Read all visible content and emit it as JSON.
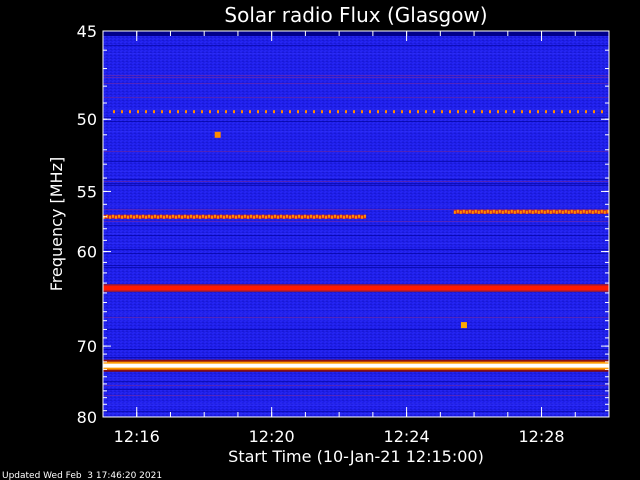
{
  "chart_data": {
    "type": "heatmap",
    "title": "Solar radio Flux (Glasgow)",
    "xlabel": "Start Time (10-Jan-21 12:15:00)",
    "ylabel": "Frequency [MHz]",
    "footer": "Updated Wed Feb  3 17:46:20 2021",
    "x_ticks": [
      "12:16",
      "12:20",
      "12:24",
      "12:28"
    ],
    "x_tick_minutes": [
      1,
      5,
      9,
      13
    ],
    "x_range_minutes": [
      0,
      15
    ],
    "y_ticks": [
      45,
      50,
      55,
      60,
      70,
      80
    ],
    "ylim": [
      45,
      80
    ],
    "y_scale": "reciprocal",
    "colormap": [
      "#00008b",
      "#1a1aff",
      "#6a2aa0",
      "#c82828",
      "#ff2000",
      "#ff8c00",
      "#ffff80",
      "#ffffff"
    ],
    "background_color": "#1e1ee8",
    "features": [
      {
        "kind": "emission_band",
        "freq_mhz": 63.5,
        "intensity": "high",
        "color": "#ff1a00"
      },
      {
        "kind": "emission_band",
        "freq_mhz": 72.5,
        "intensity": "very high",
        "color": "#ffffff"
      },
      {
        "kind": "dotted_band",
        "freq_mhz": 49.5,
        "color": "#ff8c00"
      },
      {
        "kind": "interference_segment",
        "freq_mhz": 57,
        "x_start_min": 0,
        "x_end_min": 7.8,
        "color": "#ff8c00"
      },
      {
        "kind": "interference_segment",
        "freq_mhz": 56.6,
        "x_start_min": 10.4,
        "x_end_min": 15,
        "color": "#ff8c00"
      },
      {
        "kind": "blip",
        "freq_mhz": 51,
        "x_min": 3.4,
        "color": "#ff8c00"
      },
      {
        "kind": "blip",
        "freq_mhz": 67.5,
        "x_min": 10.7,
        "color": "#ffaa00"
      }
    ]
  }
}
